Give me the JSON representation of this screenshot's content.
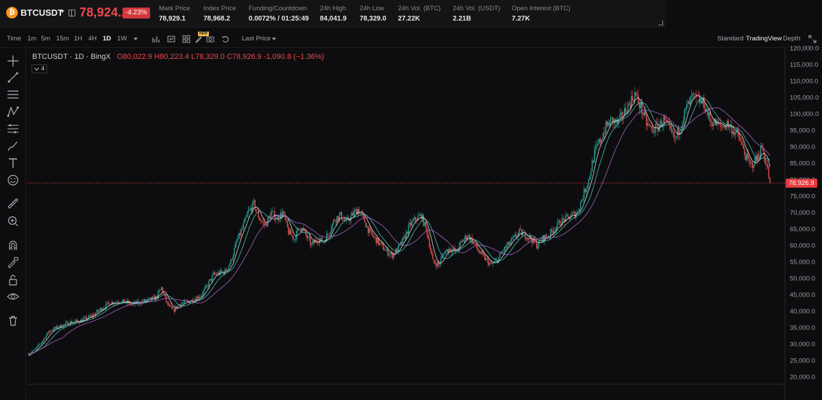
{
  "ticker": {
    "symbol": "BTCUSDT",
    "coin_glyph": "₿",
    "last_price": "78,924.2",
    "change": "-4.23%",
    "stats": [
      {
        "label": "Mark Price",
        "value": "78,929.1"
      },
      {
        "label": "Index Price",
        "value": "78,968.2"
      },
      {
        "label": "Funding/Countdown",
        "value": "0.0072% / 01:25:49"
      },
      {
        "label": "24h High",
        "value": "84,041.9"
      },
      {
        "label": "24h Low",
        "value": "78,329.0"
      },
      {
        "label": "24h Vol. (BTC)",
        "value": "27.22K"
      },
      {
        "label": "24h Vol. (USDT)",
        "value": "2.21B"
      },
      {
        "label": "Open Interest (BTC)",
        "value": "7.27K"
      }
    ],
    "colors": {
      "down": "#f2484b",
      "badge": "#d6373d",
      "coin": "#f7931a"
    }
  },
  "toolbar": {
    "intervals": [
      "Time",
      "1m",
      "5m",
      "15m",
      "1H",
      "4H",
      "1D",
      "1W"
    ],
    "active_interval": "1D",
    "new_badge": "NEW",
    "price_type": "Last Price",
    "views": [
      "Standard",
      "TradingView",
      "Depth"
    ],
    "active_view": "TradingView",
    "icons": [
      "indicators-icon",
      "drawing-template-icon",
      "camera-icon",
      "undo-icon",
      "fullscreen-icon"
    ]
  },
  "tools": [
    "crosshair-icon",
    "trend-line-icon",
    "horizontal-lines-icon",
    "pattern-icon",
    "fib-icon",
    "brush-icon",
    "text-icon",
    "emoji-icon",
    "ruler-icon",
    "zoom-in-icon",
    "magnet-icon",
    "lock-drawing-icon",
    "lock-icon",
    "eye-icon",
    "trash-icon"
  ],
  "legend": {
    "title": "BTCUSDT · 1D · BingX",
    "ohlc": "O80,022.9 H80,223.4 L78,329.0 C78,926.9 -1,090.8 (−1.36%)",
    "indicator_count": "4"
  },
  "chart_data": {
    "type": "line",
    "subtype": "candlestick",
    "ylim": [
      20000,
      120000
    ],
    "y_ticks": [
      "120,000.0",
      "115,000.0",
      "110,000.0",
      "105,000.0",
      "100,000.0",
      "95,000.0",
      "90,000.0",
      "85,000.0",
      "80,000.0",
      "75,000.0",
      "70,000.0",
      "65,000.0",
      "60,000.0",
      "55,000.0",
      "50,000.0",
      "45,000.0",
      "40,000.0",
      "35,000.0",
      "30,000.0",
      "25,000.0",
      "20,000.0"
    ],
    "current_price": 78926.9,
    "current_price_label": "78,926.9",
    "close_path": [
      [
        0,
        27000
      ],
      [
        5,
        28000
      ],
      [
        12,
        31000
      ],
      [
        18,
        34000
      ],
      [
        25,
        35000
      ],
      [
        35,
        36500
      ],
      [
        45,
        37000
      ],
      [
        55,
        38500
      ],
      [
        62,
        40500
      ],
      [
        70,
        42500
      ],
      [
        80,
        43000
      ],
      [
        90,
        42000
      ],
      [
        100,
        43000
      ],
      [
        110,
        44000
      ],
      [
        115,
        47000
      ],
      [
        120,
        42000
      ],
      [
        125,
        40000
      ],
      [
        130,
        42000
      ],
      [
        140,
        43000
      ],
      [
        150,
        45000
      ],
      [
        155,
        48000
      ],
      [
        160,
        51000
      ],
      [
        170,
        52000
      ],
      [
        175,
        55000
      ],
      [
        180,
        61000
      ],
      [
        185,
        65000
      ],
      [
        190,
        70000
      ],
      [
        195,
        72500
      ],
      [
        200,
        68000
      ],
      [
        205,
        66000
      ],
      [
        210,
        70000
      ],
      [
        215,
        68000
      ],
      [
        220,
        70000
      ],
      [
        225,
        64000
      ],
      [
        230,
        62000
      ],
      [
        235,
        66000
      ],
      [
        240,
        63000
      ],
      [
        245,
        60000
      ],
      [
        250,
        62000
      ],
      [
        255,
        61000
      ],
      [
        260,
        64000
      ],
      [
        265,
        68000
      ],
      [
        270,
        69000
      ],
      [
        275,
        67000
      ],
      [
        280,
        69000
      ],
      [
        285,
        71000
      ],
      [
        290,
        68000
      ],
      [
        295,
        64000
      ],
      [
        300,
        62000
      ],
      [
        305,
        60000
      ],
      [
        310,
        58000
      ],
      [
        315,
        57000
      ],
      [
        320,
        59000
      ],
      [
        325,
        62000
      ],
      [
        330,
        66000
      ],
      [
        335,
        68000
      ],
      [
        340,
        69000
      ],
      [
        345,
        64000
      ],
      [
        350,
        55000
      ],
      [
        355,
        54000
      ],
      [
        360,
        58000
      ],
      [
        365,
        59000
      ],
      [
        370,
        58000
      ],
      [
        375,
        61000
      ],
      [
        380,
        63000
      ],
      [
        385,
        61000
      ],
      [
        390,
        58000
      ],
      [
        395,
        56000
      ],
      [
        400,
        54000
      ],
      [
        405,
        55000
      ],
      [
        410,
        58000
      ],
      [
        415,
        60000
      ],
      [
        420,
        62000
      ],
      [
        425,
        64000
      ],
      [
        430,
        63000
      ],
      [
        435,
        62000
      ],
      [
        440,
        60000
      ],
      [
        445,
        62000
      ],
      [
        450,
        63000
      ],
      [
        455,
        65000
      ],
      [
        460,
        67000
      ],
      [
        465,
        68000
      ],
      [
        470,
        69000
      ],
      [
        475,
        70000
      ],
      [
        480,
        75000
      ],
      [
        485,
        80000
      ],
      [
        490,
        88000
      ],
      [
        495,
        92000
      ],
      [
        500,
        96000
      ],
      [
        505,
        98000
      ],
      [
        510,
        97000
      ],
      [
        515,
        100000
      ],
      [
        520,
        103000
      ],
      [
        525,
        106000
      ],
      [
        530,
        102000
      ],
      [
        535,
        97000
      ],
      [
        540,
        95000
      ],
      [
        545,
        96000
      ],
      [
        550,
        98000
      ],
      [
        555,
        95000
      ],
      [
        560,
        92000
      ],
      [
        565,
        97000
      ],
      [
        570,
        102000
      ],
      [
        575,
        105000
      ],
      [
        580,
        104000
      ],
      [
        585,
        103000
      ],
      [
        590,
        98000
      ],
      [
        595,
        97000
      ],
      [
        600,
        96000
      ],
      [
        605,
        97000
      ],
      [
        610,
        95000
      ],
      [
        615,
        93000
      ],
      [
        620,
        88000
      ],
      [
        625,
        84000
      ],
      [
        630,
        86000
      ],
      [
        635,
        90000
      ],
      [
        640,
        83000
      ],
      [
        642,
        78927
      ]
    ]
  }
}
